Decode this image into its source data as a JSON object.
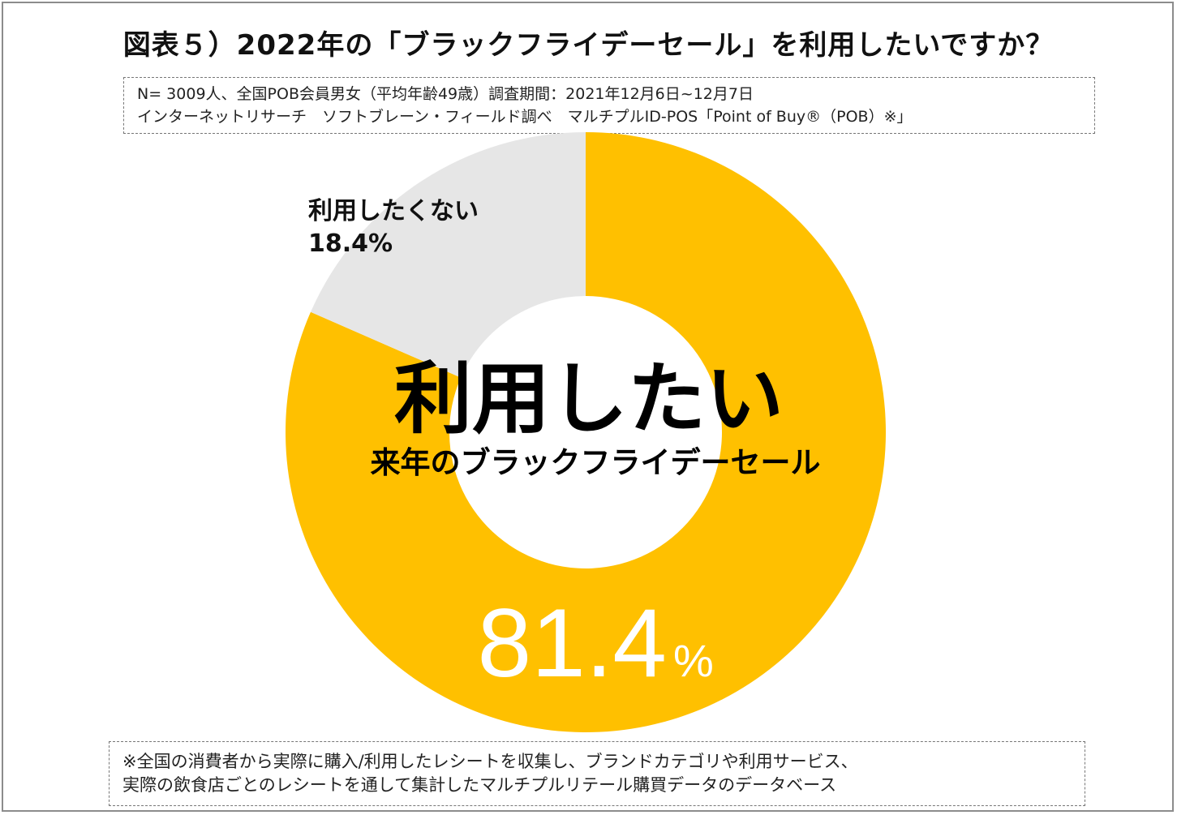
{
  "title": "図表５）2022年の「ブラックフライデーセール」を利用したいですか？",
  "survey_info": [
    "N= 3009人、全国POB会員男女（平均年齢49歳）調査期間：2021年12月6日~12月7日",
    "インターネットリサーチ　ソフトブレーン・フィールド調べ　マルチプルID-POS「Point of Buy®（POB）※」"
  ],
  "footnote": [
    "※全国の消費者から実際に購入/利用したレシートを収集し、ブランドカテゴリや利用サービス、",
    "実際の飲食店ごとのレシートを通して集計したマルチプルリテール購買データのデータベース"
  ],
  "chart_data": {
    "type": "pie",
    "title": "",
    "center_label_main": "利用したい",
    "center_label_sub": "来年のブラックフライデーセール",
    "slices": [
      {
        "label": "利用したい",
        "value": 81.4,
        "value_text": "81.4",
        "unit_text": "%",
        "color": "#FFC000"
      },
      {
        "label": "利用したくない",
        "value": 18.4,
        "value_text": "18.4%",
        "color": "#E6E6E6"
      }
    ]
  }
}
